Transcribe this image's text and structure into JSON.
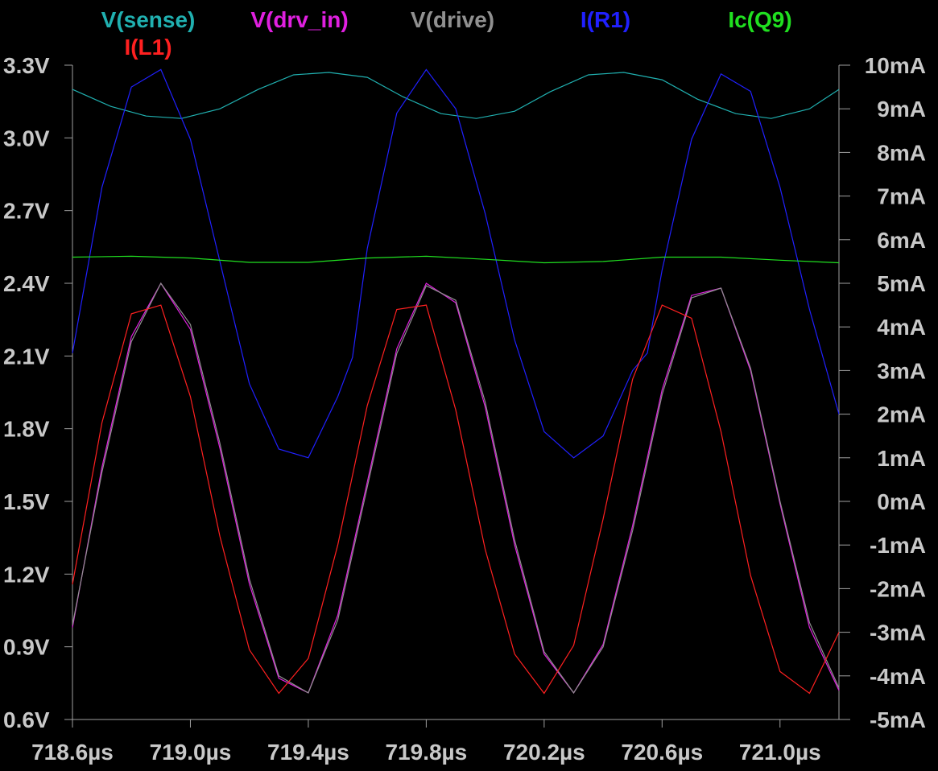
{
  "chart_data": {
    "type": "line",
    "x_unit": "µs",
    "xlim": [
      718.6,
      721.2
    ],
    "xticks": [
      718.6,
      719.0,
      719.4,
      719.8,
      720.2,
      720.6,
      721.0
    ],
    "xtick_labels": [
      "718.6µs",
      "719.0µs",
      "719.4µs",
      "719.8µs",
      "720.2µs",
      "720.6µs",
      "721.0µs"
    ],
    "y_left": {
      "unit": "V",
      "range": [
        0.6,
        3.3
      ],
      "ticks": [
        3.3,
        3.0,
        2.7,
        2.4,
        2.1,
        1.8,
        1.5,
        1.2,
        0.9,
        0.6
      ],
      "tick_labels": [
        "3.3V",
        "3.0V",
        "2.7V",
        "2.4V",
        "2.1V",
        "1.8V",
        "1.5V",
        "1.2V",
        "0.9V",
        "0.6V"
      ]
    },
    "y_right": {
      "unit": "mA",
      "range": [
        -5,
        10
      ],
      "ticks": [
        10,
        9,
        8,
        7,
        6,
        5,
        4,
        3,
        2,
        1,
        0,
        -1,
        -2,
        -3,
        -4,
        -5
      ],
      "tick_labels": [
        "10mA",
        "9mA",
        "8mA",
        "7mA",
        "6mA",
        "5mA",
        "4mA",
        "3mA",
        "2mA",
        "1mA",
        "0mA",
        "-1mA",
        "-2mA",
        "-3mA",
        "-4mA",
        "-5mA"
      ]
    },
    "grid": false,
    "legend_placement": "top",
    "legend": [
      {
        "label": "V(sense)",
        "color": "#20b0b0"
      },
      {
        "label": "V(drv_in)",
        "color": "#e020e0"
      },
      {
        "label": "V(drive)",
        "color": "#909090"
      },
      {
        "label": "I(R1)",
        "color": "#2020ff"
      },
      {
        "label": "Ic(Q9)",
        "color": "#20e020"
      },
      {
        "label": "I(L1)",
        "color": "#ff2020"
      }
    ],
    "series": [
      {
        "name": "V(sense)",
        "axis": "left",
        "color": "#20b0b0",
        "x": [
          718.6,
          718.73,
          718.85,
          718.97,
          719.1,
          719.23,
          719.35,
          719.47,
          719.6,
          719.72,
          719.85,
          719.97,
          720.1,
          720.22,
          720.35,
          720.47,
          720.6,
          720.72,
          720.85,
          720.97,
          721.1,
          721.2
        ],
        "y": [
          3.2,
          3.13,
          3.09,
          3.08,
          3.12,
          3.2,
          3.26,
          3.27,
          3.25,
          3.17,
          3.1,
          3.08,
          3.11,
          3.19,
          3.26,
          3.27,
          3.24,
          3.16,
          3.1,
          3.08,
          3.12,
          3.2
        ]
      },
      {
        "name": "V(drv_in)",
        "axis": "left",
        "color": "#e020e0",
        "x": [
          718.6,
          718.7,
          718.8,
          718.9,
          719.0,
          719.1,
          719.2,
          719.3,
          719.4,
          719.5,
          719.6,
          719.7,
          719.8,
          719.9,
          720.0,
          720.1,
          720.2,
          720.3,
          720.4,
          720.5,
          720.6,
          720.7,
          720.8,
          720.9,
          721.0,
          721.1,
          721.2
        ],
        "y": [
          0.98,
          1.64,
          2.18,
          2.4,
          2.21,
          1.72,
          1.16,
          0.77,
          0.71,
          1.03,
          1.58,
          2.13,
          2.4,
          2.32,
          1.89,
          1.32,
          0.87,
          0.71,
          0.91,
          1.4,
          1.96,
          2.35,
          2.38,
          2.04,
          1.49,
          0.98,
          0.72
        ]
      },
      {
        "name": "V(drive)",
        "axis": "left",
        "color": "#909090",
        "x": [
          718.6,
          718.7,
          718.8,
          718.9,
          719.0,
          719.1,
          719.2,
          719.3,
          719.4,
          719.5,
          719.6,
          719.7,
          719.8,
          719.9,
          720.0,
          720.1,
          720.2,
          720.3,
          720.4,
          720.5,
          720.6,
          720.7,
          720.8,
          720.9,
          721.0,
          721.1,
          721.2
        ],
        "y": [
          0.99,
          1.62,
          2.16,
          2.4,
          2.23,
          1.74,
          1.18,
          0.78,
          0.71,
          1.01,
          1.56,
          2.11,
          2.39,
          2.33,
          1.91,
          1.34,
          0.88,
          0.71,
          0.9,
          1.38,
          1.94,
          2.34,
          2.38,
          2.05,
          1.5,
          1.0,
          0.73
        ]
      },
      {
        "name": "I(R1)",
        "axis": "right",
        "color": "#2020ff",
        "x": [
          718.6,
          718.7,
          718.8,
          718.9,
          719.0,
          719.1,
          719.2,
          719.3,
          719.4,
          719.5,
          719.55,
          719.6,
          719.7,
          719.8,
          719.9,
          720.0,
          720.1,
          720.2,
          720.3,
          720.4,
          720.5,
          720.55,
          720.6,
          720.7,
          720.8,
          720.9,
          721.0,
          721.1,
          721.2
        ],
        "y": [
          3.4,
          7.2,
          9.5,
          9.9,
          8.3,
          5.5,
          2.7,
          1.2,
          1.0,
          2.4,
          3.3,
          5.8,
          8.9,
          9.9,
          9.0,
          6.6,
          3.7,
          1.6,
          1.0,
          1.5,
          3.0,
          3.4,
          5.3,
          8.3,
          9.8,
          9.4,
          7.2,
          4.4,
          2.0
        ]
      },
      {
        "name": "Ic(Q9)",
        "axis": "right",
        "color": "#20e020",
        "x": [
          718.6,
          718.8,
          719.0,
          719.2,
          719.4,
          719.6,
          719.8,
          720.0,
          720.2,
          720.4,
          720.6,
          720.8,
          721.0,
          721.2
        ],
        "y": [
          5.6,
          5.62,
          5.58,
          5.48,
          5.48,
          5.58,
          5.62,
          5.55,
          5.47,
          5.5,
          5.6,
          5.6,
          5.53,
          5.47
        ]
      },
      {
        "name": "I(L1)",
        "axis": "right",
        "color": "#ff2020",
        "x": [
          718.6,
          718.7,
          718.8,
          718.9,
          719.0,
          719.1,
          719.2,
          719.3,
          719.4,
          719.5,
          719.6,
          719.7,
          719.8,
          719.9,
          720.0,
          720.1,
          720.2,
          720.3,
          720.4,
          720.5,
          720.6,
          720.7,
          720.8,
          720.9,
          721.0,
          721.1,
          721.2
        ],
        "y": [
          -1.9,
          1.8,
          4.3,
          4.5,
          2.4,
          -0.8,
          -3.4,
          -4.4,
          -3.6,
          -1.0,
          2.2,
          4.4,
          4.5,
          2.1,
          -1.1,
          -3.5,
          -4.4,
          -3.3,
          -0.4,
          2.8,
          4.5,
          4.2,
          1.6,
          -1.7,
          -3.9,
          -4.4,
          -3.0
        ]
      }
    ]
  }
}
